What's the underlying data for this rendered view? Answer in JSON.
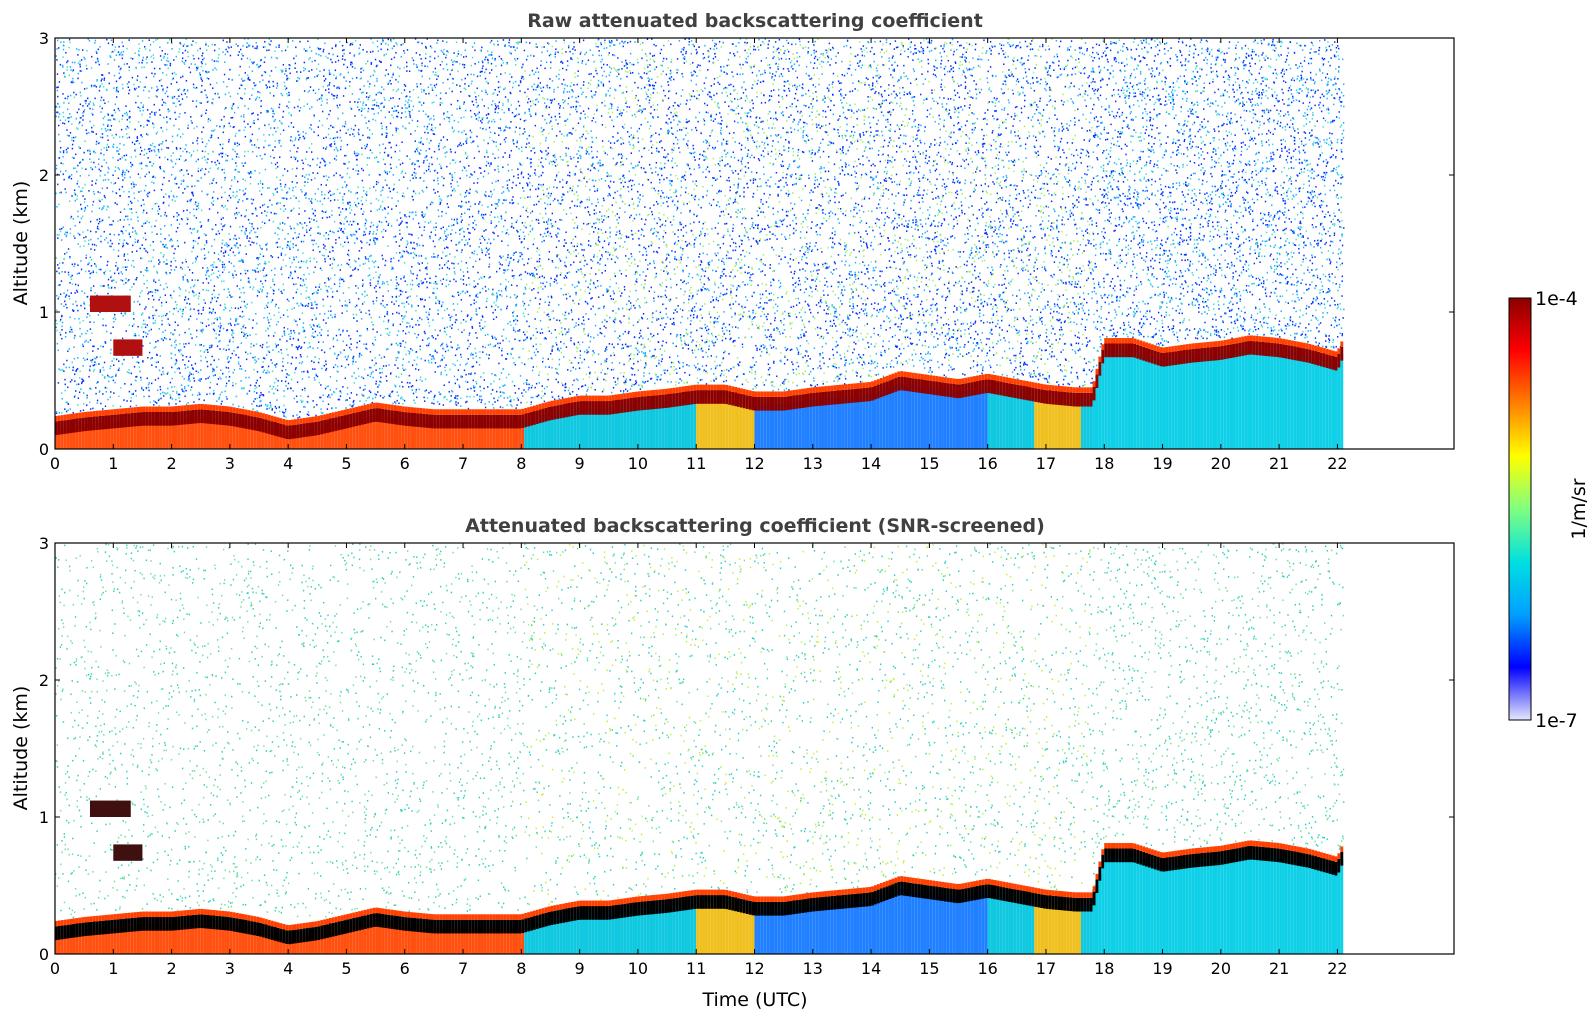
{
  "figure": {
    "colorbar": {
      "max_label": "1e-4",
      "min_label": "1e-7",
      "unit_label": "1/m/sr",
      "scale": "log",
      "range": [
        1e-07,
        0.0001
      ],
      "colormap": [
        "#e6e6fa",
        "#0000ff",
        "#00a0ff",
        "#00e0e0",
        "#80ff80",
        "#ffff00",
        "#ff8000",
        "#ff0000",
        "#8b0000"
      ]
    }
  },
  "chart_data": [
    {
      "type": "heatmap",
      "title": "Raw attenuated backscattering coefficient",
      "xlabel": "",
      "ylabel": "Altitude (km)",
      "xlim": [
        0,
        24
      ],
      "ylim": [
        0,
        3
      ],
      "x_ticks": [
        "0",
        "1",
        "2",
        "3",
        "4",
        "5",
        "6",
        "7",
        "8",
        "9",
        "10",
        "11",
        "12",
        "13",
        "14",
        "15",
        "16",
        "17",
        "18",
        "19",
        "20",
        "21",
        "22"
      ],
      "y_ticks": [
        "0",
        "1",
        "2",
        "3"
      ],
      "data_extent_hours": 22.1,
      "boundary_layer_top_km": {
        "x": [
          0,
          0.5,
          1,
          1.5,
          2,
          2.5,
          3,
          3.5,
          4,
          4.5,
          5,
          5.5,
          6,
          6.5,
          7,
          7.5,
          8,
          8.5,
          9,
          9.5,
          10,
          10.5,
          11,
          11.5,
          12,
          12.5,
          13,
          13.5,
          14,
          14.5,
          15,
          15.5,
          16,
          16.5,
          17,
          17.5,
          17.8,
          18,
          18.5,
          19,
          19.5,
          20,
          20.5,
          21,
          21.5,
          22,
          22.1
        ],
        "y": [
          0.15,
          0.18,
          0.2,
          0.22,
          0.22,
          0.24,
          0.22,
          0.18,
          0.12,
          0.15,
          0.2,
          0.25,
          0.22,
          0.2,
          0.2,
          0.2,
          0.2,
          0.26,
          0.3,
          0.3,
          0.33,
          0.35,
          0.38,
          0.38,
          0.33,
          0.33,
          0.36,
          0.38,
          0.4,
          0.48,
          0.45,
          0.42,
          0.46,
          0.42,
          0.38,
          0.36,
          0.36,
          0.72,
          0.72,
          0.65,
          0.68,
          0.7,
          0.74,
          0.72,
          0.68,
          0.62,
          0.72
        ]
      },
      "low_cloud_segments": [
        {
          "x_start": 0.6,
          "x_end": 1.3,
          "bottom_km": 1.0,
          "top_km": 1.12
        },
        {
          "x_start": 1.0,
          "x_end": 1.5,
          "bottom_km": 0.68,
          "top_km": 0.8
        }
      ],
      "noise": "dense"
    },
    {
      "type": "heatmap",
      "title": "Attenuated backscattering coefficient (SNR-screened)",
      "xlabel": "Time (UTC)",
      "ylabel": "Altitude (km)",
      "xlim": [
        0,
        24
      ],
      "ylim": [
        0,
        3
      ],
      "x_ticks": [
        "0",
        "1",
        "2",
        "3",
        "4",
        "5",
        "6",
        "7",
        "8",
        "9",
        "10",
        "11",
        "12",
        "13",
        "14",
        "15",
        "16",
        "17",
        "18",
        "19",
        "20",
        "21",
        "22"
      ],
      "y_ticks": [
        "0",
        "1",
        "2",
        "3"
      ],
      "data_extent_hours": 22.1,
      "noise": "sparse"
    }
  ]
}
